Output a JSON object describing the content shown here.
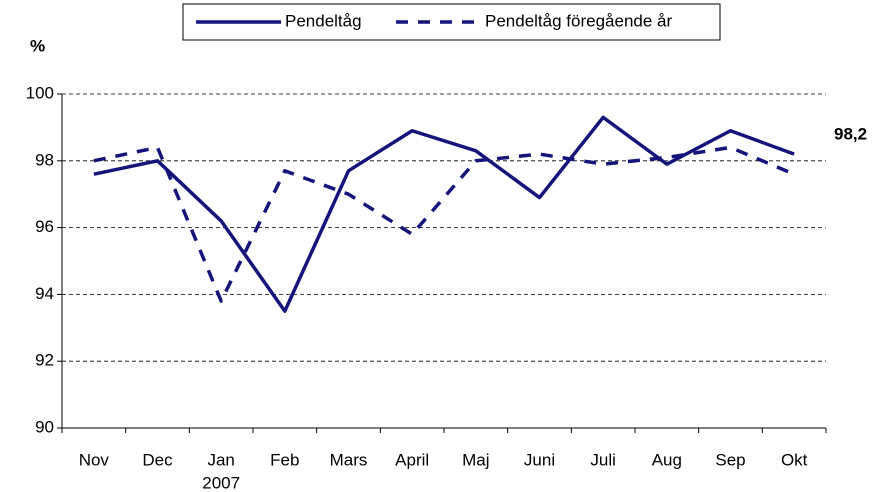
{
  "chart_data": {
    "type": "line",
    "y_label": "%",
    "categories": [
      "Nov",
      "Dec",
      "Jan",
      "Feb",
      "Mars",
      "April",
      "Maj",
      "Juni",
      "Juli",
      "Aug",
      "Sep",
      "Okt"
    ],
    "annotations": [
      {
        "text": "2007",
        "category": "Jan"
      }
    ],
    "series": [
      {
        "name": "Pendeltåg",
        "color": "#14147a",
        "dash": false,
        "values": [
          97.6,
          98.0,
          96.2,
          93.5,
          97.7,
          98.9,
          98.3,
          96.9,
          99.3,
          97.9,
          98.9,
          98.2
        ],
        "value_labels": [
          null,
          null,
          null,
          null,
          null,
          null,
          null,
          null,
          null,
          null,
          null,
          "98,2"
        ]
      },
      {
        "name": "Pendeltåg föregående år",
        "color": "#14147a",
        "dash": true,
        "values": [
          98.0,
          98.4,
          93.8,
          97.7,
          97.0,
          95.8,
          98.0,
          98.2,
          97.9,
          98.1,
          98.4,
          97.6
        ]
      }
    ],
    "ylim": [
      90,
      100
    ],
    "yticks": [
      90,
      92,
      94,
      96,
      98,
      100
    ],
    "grid": true,
    "legend": "top"
  }
}
